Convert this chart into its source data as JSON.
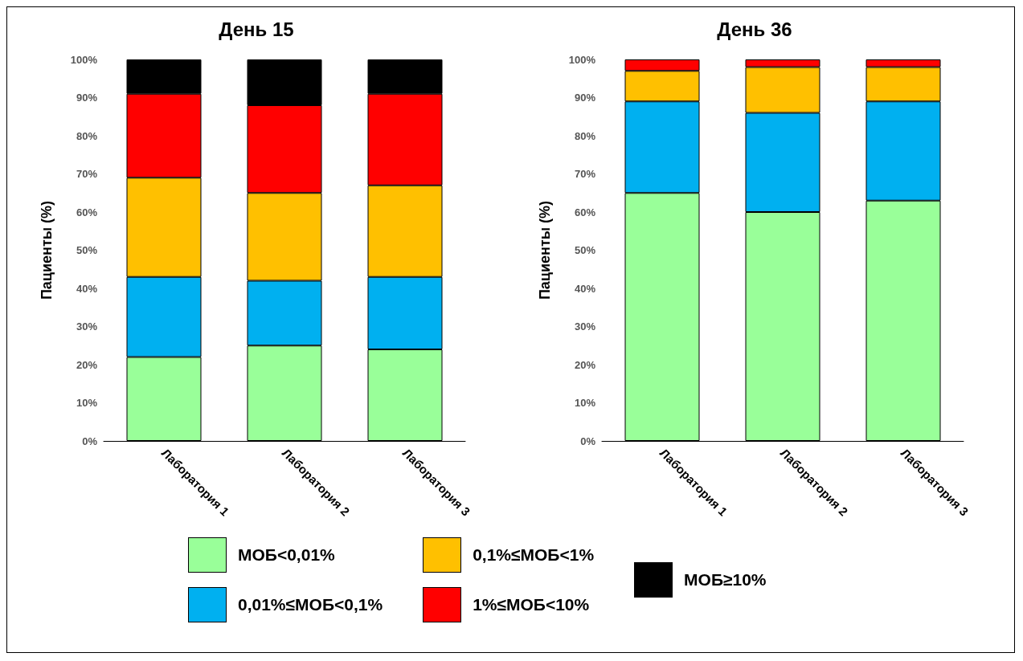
{
  "chart_data": [
    {
      "type": "bar",
      "stacked": true,
      "title": "День 15",
      "ylabel": "Пациенты (%)",
      "categories": [
        "Лаборатория 1",
        "Лаборатория 2",
        "Лаборатория 3"
      ],
      "ylim": [
        0,
        100
      ],
      "yticks": [
        {
          "value": 0,
          "label": "0%"
        },
        {
          "value": 10,
          "label": "10%"
        },
        {
          "value": 20,
          "label": "20%"
        },
        {
          "value": 30,
          "label": "30%"
        },
        {
          "value": 40,
          "label": "40%"
        },
        {
          "value": 50,
          "label": "50%"
        },
        {
          "value": 60,
          "label": "60%"
        },
        {
          "value": 70,
          "label": "70%"
        },
        {
          "value": 80,
          "label": "80%"
        },
        {
          "value": 90,
          "label": "90%"
        },
        {
          "value": 100,
          "label": "100%"
        }
      ],
      "grid": false,
      "legend": "bottom",
      "series": [
        {
          "name": "МОБ<0,01%",
          "color": "#99ff99",
          "values": [
            22,
            25,
            24
          ]
        },
        {
          "name": "0,01%≤МОБ<0,1%",
          "color": "#00b0f0",
          "values": [
            21,
            17,
            19
          ]
        },
        {
          "name": "0,1%≤МОБ<1%",
          "color": "#ffc000",
          "values": [
            26,
            23,
            24
          ]
        },
        {
          "name": "1%≤МОБ<10%",
          "color": "#ff0000",
          "values": [
            22,
            23,
            24
          ]
        },
        {
          "name": "МОБ≥10%",
          "color": "#000000",
          "values": [
            9,
            12,
            9
          ]
        }
      ]
    },
    {
      "type": "bar",
      "stacked": true,
      "title": "День 36",
      "ylabel": "Пациенты (%)",
      "categories": [
        "Лаборатория 1",
        "Лаборатория 2",
        "Лаборатория 3"
      ],
      "ylim": [
        0,
        100
      ],
      "yticks": [
        {
          "value": 0,
          "label": "0%"
        },
        {
          "value": 10,
          "label": "10%"
        },
        {
          "value": 20,
          "label": "20%"
        },
        {
          "value": 30,
          "label": "30%"
        },
        {
          "value": 40,
          "label": "40%"
        },
        {
          "value": 50,
          "label": "50%"
        },
        {
          "value": 60,
          "label": "60%"
        },
        {
          "value": 70,
          "label": "70%"
        },
        {
          "value": 80,
          "label": "80%"
        },
        {
          "value": 90,
          "label": "90%"
        },
        {
          "value": 100,
          "label": "100%"
        }
      ],
      "grid": false,
      "legend": "bottom",
      "series": [
        {
          "name": "МОБ<0,01%",
          "color": "#99ff99",
          "values": [
            65,
            60,
            63
          ]
        },
        {
          "name": "0,01%≤МОБ<0,1%",
          "color": "#00b0f0",
          "values": [
            24,
            26,
            26
          ]
        },
        {
          "name": "0,1%≤МОБ<1%",
          "color": "#ffc000",
          "values": [
            8,
            12,
            9
          ]
        },
        {
          "name": "1%≤МОБ<10%",
          "color": "#ff0000",
          "values": [
            3,
            2,
            2
          ]
        }
      ]
    }
  ]
}
